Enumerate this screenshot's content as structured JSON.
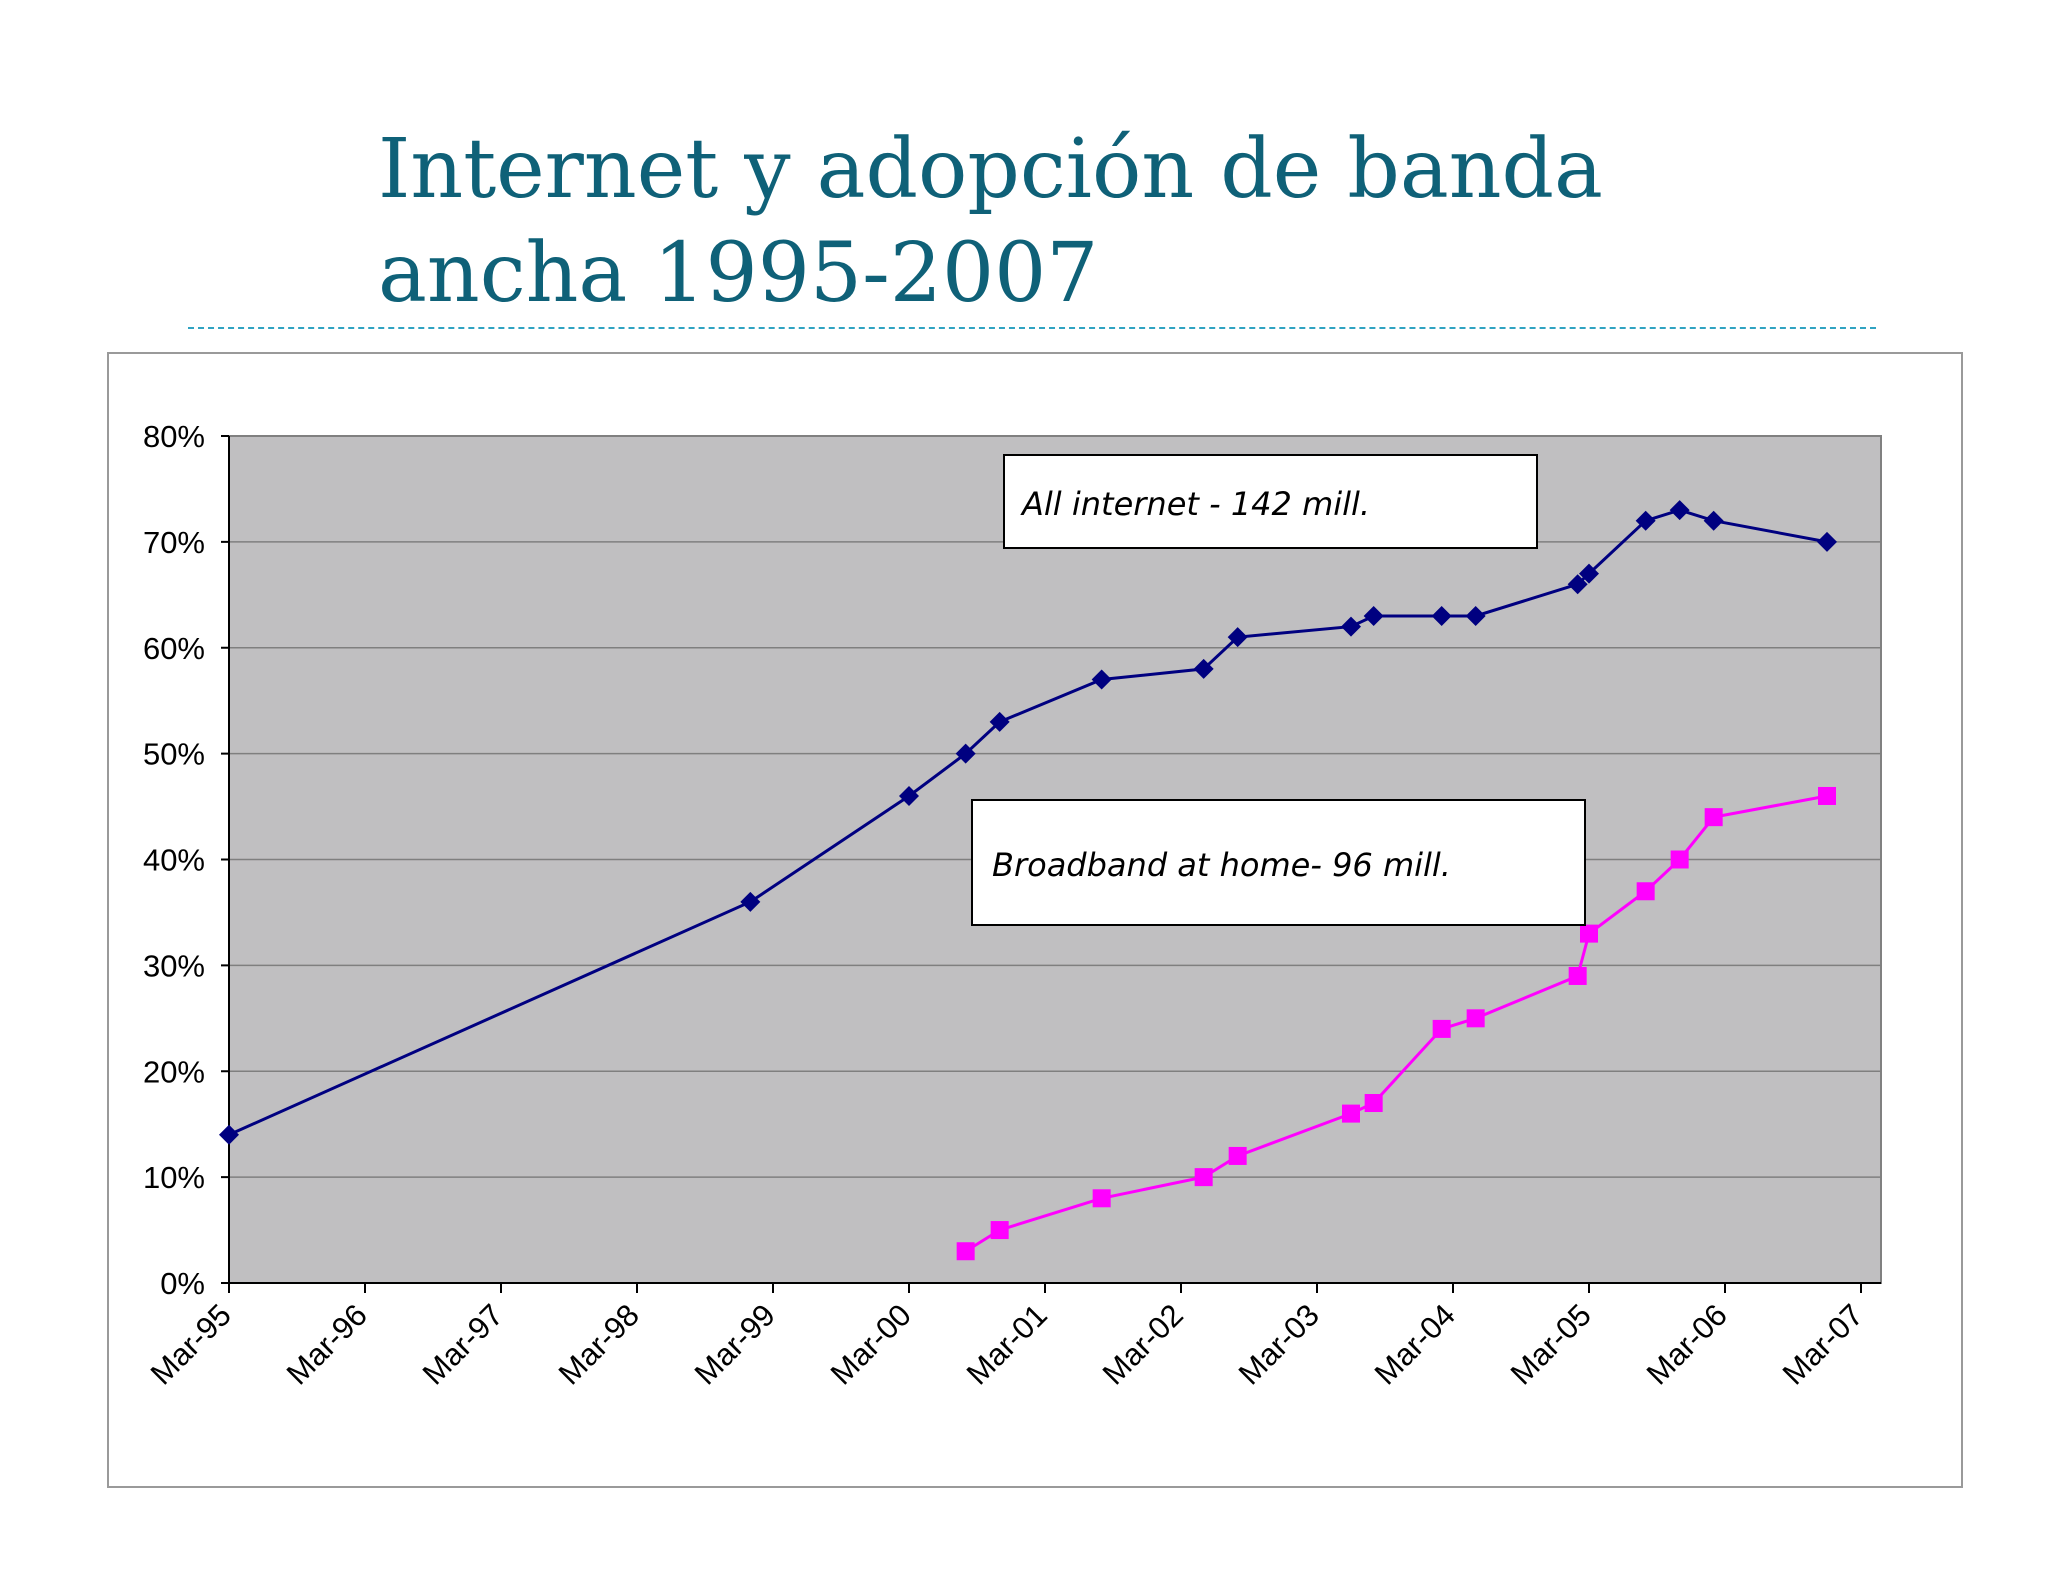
{
  "slide": {
    "title_line1": "Internet y adopción de banda",
    "title_line2": "ancha 1995-2007"
  },
  "chart_data": {
    "type": "line",
    "title": "",
    "xlabel": "",
    "ylabel": "",
    "ylim": [
      0,
      80
    ],
    "yticks": [
      "0%",
      "10%",
      "20%",
      "30%",
      "40%",
      "50%",
      "60%",
      "70%",
      "80%"
    ],
    "xticks": [
      "Mar-95",
      "Mar-96",
      "Mar-97",
      "Mar-98",
      "Mar-99",
      "Mar-00",
      "Mar-01",
      "Mar-02",
      "Mar-03",
      "Mar-04",
      "Mar-05",
      "Mar-06",
      "Mar-07"
    ],
    "grid": true,
    "colors": {
      "plot_bg": "#c0bfc1",
      "all_internet": "#000080",
      "broadband": "#ff00ff"
    },
    "series": [
      {
        "name": "All internet - 142 mill.",
        "marker": "diamond",
        "points": [
          [
            "1995-03",
            14
          ],
          [
            "1999-01",
            36
          ],
          [
            "2000-03",
            46
          ],
          [
            "2000-08",
            50
          ],
          [
            "2000-11",
            53
          ],
          [
            "2001-08",
            57
          ],
          [
            "2002-05",
            58
          ],
          [
            "2002-08",
            61
          ],
          [
            "2003-06",
            62
          ],
          [
            "2003-08",
            63
          ],
          [
            "2004-02",
            63
          ],
          [
            "2004-05",
            63
          ],
          [
            "2005-02",
            66
          ],
          [
            "2005-03",
            67
          ],
          [
            "2005-08",
            72
          ],
          [
            "2005-11",
            73
          ],
          [
            "2006-02",
            72
          ],
          [
            "2006-12",
            70
          ]
        ]
      },
      {
        "name": "Broadband at home- 96 mill.",
        "marker": "square",
        "points": [
          [
            "2000-08",
            3
          ],
          [
            "2000-11",
            5
          ],
          [
            "2001-08",
            8
          ],
          [
            "2002-05",
            10
          ],
          [
            "2002-08",
            12
          ],
          [
            "2003-06",
            16
          ],
          [
            "2003-08",
            17
          ],
          [
            "2004-02",
            24
          ],
          [
            "2004-05",
            25
          ],
          [
            "2005-02",
            29
          ],
          [
            "2005-03",
            33
          ],
          [
            "2005-08",
            37
          ],
          [
            "2005-11",
            40
          ],
          [
            "2006-02",
            44
          ],
          [
            "2006-12",
            46
          ]
        ]
      }
    ]
  }
}
